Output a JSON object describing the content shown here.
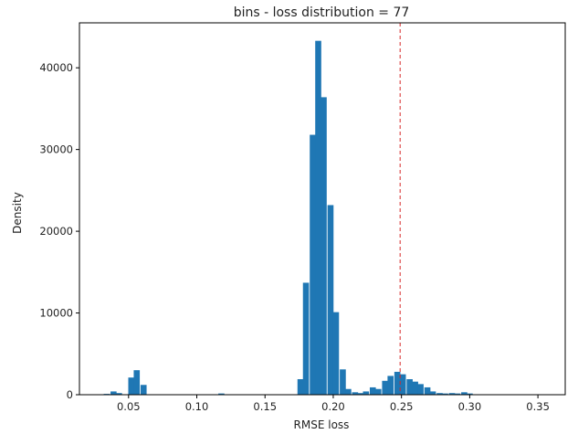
{
  "chart_data": {
    "type": "bar",
    "title": "bins - loss distribution = 77",
    "xlabel": "RMSE loss",
    "ylabel": "Density",
    "xlim": [
      0.014,
      0.37
    ],
    "ylim": [
      0,
      45500
    ],
    "xticks": [
      0.05,
      0.1,
      0.15,
      0.2,
      0.25,
      0.3,
      0.35
    ],
    "xtick_labels": [
      "0.05",
      "0.10",
      "0.15",
      "0.20",
      "0.25",
      "0.30",
      "0.35"
    ],
    "yticks": [
      0,
      10000,
      20000,
      30000,
      40000
    ],
    "ytick_labels": [
      "0",
      "10000",
      "20000",
      "30000",
      "40000"
    ],
    "bin_width": 0.00443,
    "bar_color": "#1f77b4",
    "grid": false,
    "reference_line": {
      "x": 0.249,
      "color": "#d62728",
      "style": "dashed"
    },
    "bins": [
      {
        "x": 0.034,
        "y": 100
      },
      {
        "x": 0.039,
        "y": 400
      },
      {
        "x": 0.043,
        "y": 200
      },
      {
        "x": 0.052,
        "y": 2100
      },
      {
        "x": 0.056,
        "y": 3000
      },
      {
        "x": 0.061,
        "y": 1200
      },
      {
        "x": 0.118,
        "y": 150
      },
      {
        "x": 0.176,
        "y": 1900
      },
      {
        "x": 0.18,
        "y": 13700
      },
      {
        "x": 0.185,
        "y": 31800
      },
      {
        "x": 0.189,
        "y": 43300
      },
      {
        "x": 0.193,
        "y": 36400
      },
      {
        "x": 0.198,
        "y": 23200
      },
      {
        "x": 0.202,
        "y": 10100
      },
      {
        "x": 0.207,
        "y": 3100
      },
      {
        "x": 0.211,
        "y": 700
      },
      {
        "x": 0.216,
        "y": 300
      },
      {
        "x": 0.22,
        "y": 200
      },
      {
        "x": 0.224,
        "y": 400
      },
      {
        "x": 0.229,
        "y": 900
      },
      {
        "x": 0.233,
        "y": 700
      },
      {
        "x": 0.238,
        "y": 1700
      },
      {
        "x": 0.242,
        "y": 2300
      },
      {
        "x": 0.247,
        "y": 2800
      },
      {
        "x": 0.251,
        "y": 2500
      },
      {
        "x": 0.256,
        "y": 1900
      },
      {
        "x": 0.26,
        "y": 1600
      },
      {
        "x": 0.264,
        "y": 1300
      },
      {
        "x": 0.269,
        "y": 900
      },
      {
        "x": 0.273,
        "y": 400
      },
      {
        "x": 0.278,
        "y": 200
      },
      {
        "x": 0.282,
        "y": 150
      },
      {
        "x": 0.287,
        "y": 200
      },
      {
        "x": 0.291,
        "y": 150
      },
      {
        "x": 0.296,
        "y": 300
      },
      {
        "x": 0.3,
        "y": 150
      }
    ]
  }
}
